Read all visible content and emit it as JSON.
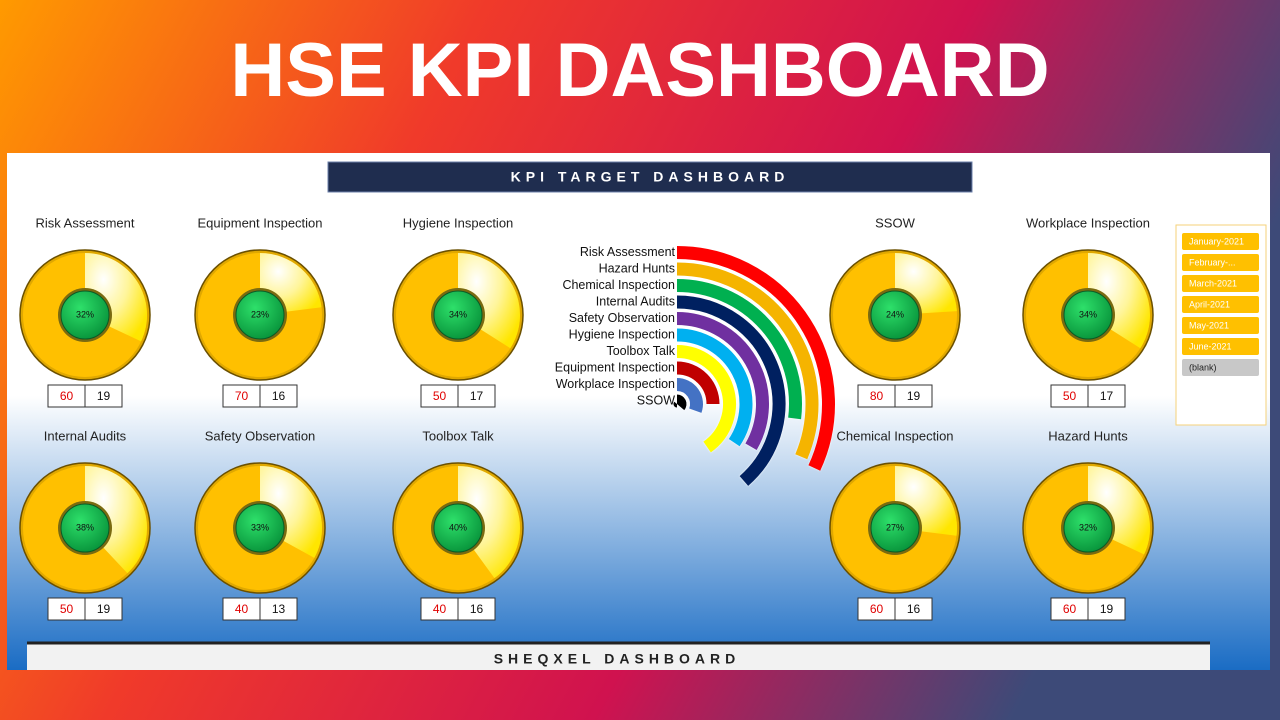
{
  "banner": "HSE KPI DASHBOARD",
  "header": "KPI TARGET DASHBOARD",
  "footer": "SHEQXEL DASHBOARD",
  "slicer": [
    "January-2021",
    "February-...",
    "March-2021",
    "April-2021",
    "May-2021",
    "June-2021",
    "(blank)"
  ],
  "chart_data": [
    {
      "type": "pie",
      "title": "Risk Assessment",
      "values": [
        32
      ],
      "value_labels": [
        "32%"
      ],
      "target": 60,
      "count": 19
    },
    {
      "type": "pie",
      "title": "Equipment Inspection",
      "values": [
        23
      ],
      "value_labels": [
        "23%"
      ],
      "target": 70,
      "count": 16
    },
    {
      "type": "pie",
      "title": "Hygiene Inspection",
      "values": [
        34
      ],
      "value_labels": [
        "34%"
      ],
      "target": 50,
      "count": 17
    },
    {
      "type": "pie",
      "title": "SSOW",
      "values": [
        24
      ],
      "value_labels": [
        "24%"
      ],
      "target": 80,
      "count": 19
    },
    {
      "type": "pie",
      "title": "Workplace Inspection",
      "values": [
        34
      ],
      "value_labels": [
        "34%"
      ],
      "target": 50,
      "count": 17
    },
    {
      "type": "pie",
      "title": "Internal Audits",
      "values": [
        38
      ],
      "value_labels": [
        "38%"
      ],
      "target": 50,
      "count": 19
    },
    {
      "type": "pie",
      "title": "Safety Observation",
      "values": [
        33
      ],
      "value_labels": [
        "33%"
      ],
      "target": 40,
      "count": 13
    },
    {
      "type": "pie",
      "title": "Toolbox Talk",
      "values": [
        40
      ],
      "value_labels": [
        "40%"
      ],
      "target": 40,
      "count": 16
    },
    {
      "type": "pie",
      "title": "Chemical Inspection",
      "values": [
        27
      ],
      "value_labels": [
        "27%"
      ],
      "target": 60,
      "count": 16
    },
    {
      "type": "pie",
      "title": "Hazard Hunts",
      "values": [
        32
      ],
      "value_labels": [
        "32%"
      ],
      "target": 60,
      "count": 19
    },
    {
      "type": "radial",
      "categories": [
        "Risk Assessment",
        "Hazard Hunts",
        "Chemical Inspection",
        "Internal Audits",
        "Safety Observation",
        "Hygiene Inspection",
        "Toolbox Talk",
        "Equipment Inspection",
        "Workplace Inspection",
        "SSOW"
      ],
      "values": [
        115,
        113,
        97,
        139,
        120,
        124,
        145,
        90,
        110,
        130
      ],
      "colors": [
        "#ff0000",
        "#f5b400",
        "#00b050",
        "#002060",
        "#7030a0",
        "#00b0f0",
        "#ffff00",
        "#c00000",
        "#4472c4",
        "#000000"
      ]
    }
  ]
}
